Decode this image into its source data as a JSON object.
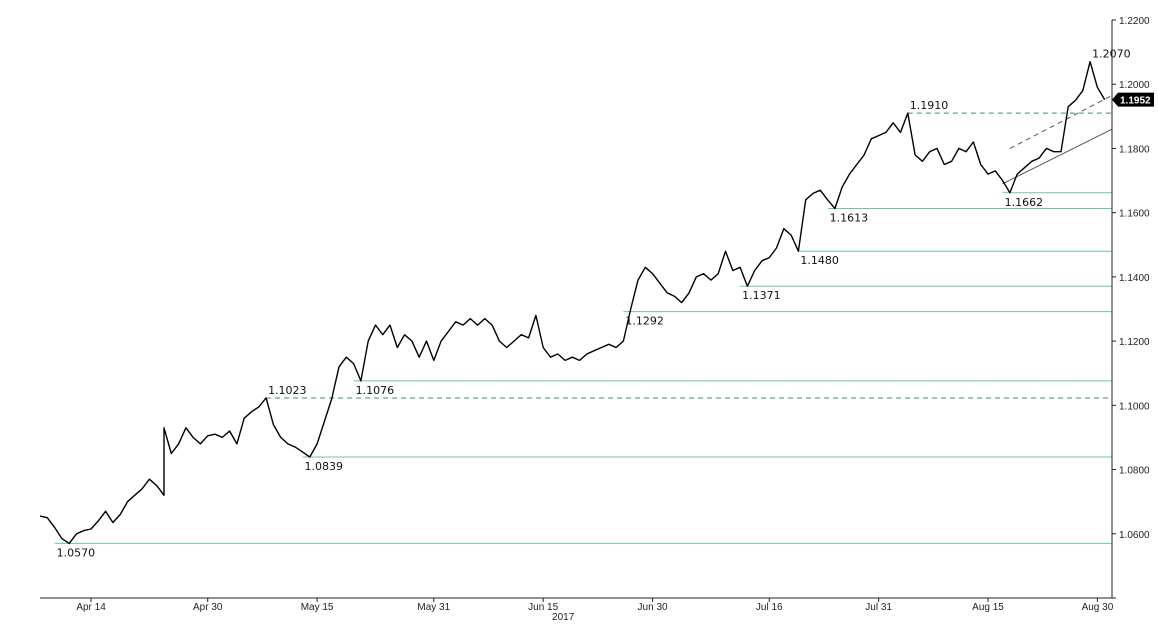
{
  "chart_data": {
    "type": "line",
    "title": "",
    "xlabel": "",
    "ylabel": "",
    "year_label": "2017",
    "ylim": [
      1.04,
      1.22
    ],
    "xlim": [
      "2017-04-07",
      "2017-09-01"
    ],
    "grid": false,
    "y_ticks": [
      "1.0600",
      "1.0800",
      "1.1000",
      "1.1200",
      "1.1400",
      "1.1600",
      "1.1800",
      "1.2000",
      "1.2200"
    ],
    "x_ticks": [
      {
        "date": "2017-04-14",
        "label": "Apr 14"
      },
      {
        "date": "2017-04-30",
        "label": "Apr 30"
      },
      {
        "date": "2017-05-15",
        "label": "May 15"
      },
      {
        "date": "2017-05-31",
        "label": "May 31"
      },
      {
        "date": "2017-06-15",
        "label": "Jun 15"
      },
      {
        "date": "2017-06-30",
        "label": "Jun 30"
      },
      {
        "date": "2017-07-16",
        "label": "Jul 16"
      },
      {
        "date": "2017-07-31",
        "label": "Jul 31"
      },
      {
        "date": "2017-08-15",
        "label": "Aug 15"
      },
      {
        "date": "2017-08-30",
        "label": "Aug 30"
      }
    ],
    "series": [
      {
        "name": "",
        "color": "#000000",
        "points": [
          [
            "2017-04-07",
            1.0655
          ],
          [
            "2017-04-08",
            1.065
          ],
          [
            "2017-04-09",
            1.062
          ],
          [
            "2017-04-10",
            1.0585
          ],
          [
            "2017-04-11",
            1.057
          ],
          [
            "2017-04-12",
            1.06
          ],
          [
            "2017-04-13",
            1.061
          ],
          [
            "2017-04-14",
            1.0615
          ],
          [
            "2017-04-15",
            1.064
          ],
          [
            "2017-04-16",
            1.067
          ],
          [
            "2017-04-17",
            1.0635
          ],
          [
            "2017-04-18",
            1.066
          ],
          [
            "2017-04-19",
            1.07
          ],
          [
            "2017-04-20",
            1.072
          ],
          [
            "2017-04-21",
            1.074
          ],
          [
            "2017-04-22",
            1.077
          ],
          [
            "2017-04-23",
            1.075
          ],
          [
            "2017-04-24",
            1.072
          ],
          [
            "2017-04-24",
            1.088
          ],
          [
            "2017-04-24",
            1.093
          ],
          [
            "2017-04-25",
            1.085
          ],
          [
            "2017-04-26",
            1.088
          ],
          [
            "2017-04-27",
            1.093
          ],
          [
            "2017-04-28",
            1.09
          ],
          [
            "2017-04-29",
            1.088
          ],
          [
            "2017-04-30",
            1.0905
          ],
          [
            "2017-05-01",
            1.091
          ],
          [
            "2017-05-02",
            1.09
          ],
          [
            "2017-05-03",
            1.092
          ],
          [
            "2017-05-04",
            1.088
          ],
          [
            "2017-05-05",
            1.096
          ],
          [
            "2017-05-06",
            1.098
          ],
          [
            "2017-05-07",
            1.0995
          ],
          [
            "2017-05-08",
            1.1023
          ],
          [
            "2017-05-09",
            1.094
          ],
          [
            "2017-05-10",
            1.09
          ],
          [
            "2017-05-11",
            1.088
          ],
          [
            "2017-05-12",
            1.087
          ],
          [
            "2017-05-13",
            1.0855
          ],
          [
            "2017-05-14",
            1.0839
          ],
          [
            "2017-05-15",
            1.088
          ],
          [
            "2017-05-16",
            1.095
          ],
          [
            "2017-05-17",
            1.102
          ],
          [
            "2017-05-18",
            1.112
          ],
          [
            "2017-05-19",
            1.115
          ],
          [
            "2017-05-20",
            1.113
          ],
          [
            "2017-05-21",
            1.1076
          ],
          [
            "2017-05-22",
            1.12
          ],
          [
            "2017-05-23",
            1.125
          ],
          [
            "2017-05-24",
            1.122
          ],
          [
            "2017-05-25",
            1.125
          ],
          [
            "2017-05-26",
            1.118
          ],
          [
            "2017-05-27",
            1.122
          ],
          [
            "2017-05-28",
            1.12
          ],
          [
            "2017-05-29",
            1.115
          ],
          [
            "2017-05-30",
            1.12
          ],
          [
            "2017-05-31",
            1.114
          ],
          [
            "2017-06-01",
            1.12
          ],
          [
            "2017-06-02",
            1.123
          ],
          [
            "2017-06-03",
            1.126
          ],
          [
            "2017-06-04",
            1.125
          ],
          [
            "2017-06-05",
            1.127
          ],
          [
            "2017-06-06",
            1.125
          ],
          [
            "2017-06-07",
            1.127
          ],
          [
            "2017-06-08",
            1.125
          ],
          [
            "2017-06-09",
            1.12
          ],
          [
            "2017-06-10",
            1.118
          ],
          [
            "2017-06-11",
            1.12
          ],
          [
            "2017-06-12",
            1.122
          ],
          [
            "2017-06-13",
            1.121
          ],
          [
            "2017-06-14",
            1.128
          ],
          [
            "2017-06-15",
            1.118
          ],
          [
            "2017-06-16",
            1.115
          ],
          [
            "2017-06-17",
            1.116
          ],
          [
            "2017-06-18",
            1.114
          ],
          [
            "2017-06-19",
            1.115
          ],
          [
            "2017-06-20",
            1.114
          ],
          [
            "2017-06-21",
            1.116
          ],
          [
            "2017-06-22",
            1.117
          ],
          [
            "2017-06-23",
            1.118
          ],
          [
            "2017-06-24",
            1.119
          ],
          [
            "2017-06-25",
            1.118
          ],
          [
            "2017-06-26",
            1.12
          ],
          [
            "2017-06-27",
            1.13
          ],
          [
            "2017-06-28",
            1.139
          ],
          [
            "2017-06-29",
            1.143
          ],
          [
            "2017-06-30",
            1.141
          ],
          [
            "2017-07-01",
            1.138
          ],
          [
            "2017-07-02",
            1.135
          ],
          [
            "2017-07-03",
            1.134
          ],
          [
            "2017-07-04",
            1.132
          ],
          [
            "2017-07-05",
            1.135
          ],
          [
            "2017-07-06",
            1.14
          ],
          [
            "2017-07-07",
            1.141
          ],
          [
            "2017-07-08",
            1.139
          ],
          [
            "2017-07-09",
            1.141
          ],
          [
            "2017-07-10",
            1.148
          ],
          [
            "2017-07-11",
            1.142
          ],
          [
            "2017-07-12",
            1.143
          ],
          [
            "2017-07-13",
            1.1371
          ],
          [
            "2017-07-14",
            1.142
          ],
          [
            "2017-07-15",
            1.145
          ],
          [
            "2017-07-16",
            1.146
          ],
          [
            "2017-07-17",
            1.149
          ],
          [
            "2017-07-18",
            1.155
          ],
          [
            "2017-07-19",
            1.153
          ],
          [
            "2017-07-20",
            1.148
          ],
          [
            "2017-07-21",
            1.164
          ],
          [
            "2017-07-22",
            1.166
          ],
          [
            "2017-07-23",
            1.167
          ],
          [
            "2017-07-24",
            1.164
          ],
          [
            "2017-07-25",
            1.1613
          ],
          [
            "2017-07-26",
            1.168
          ],
          [
            "2017-07-27",
            1.172
          ],
          [
            "2017-07-28",
            1.175
          ],
          [
            "2017-07-29",
            1.178
          ],
          [
            "2017-07-30",
            1.183
          ],
          [
            "2017-07-31",
            1.184
          ],
          [
            "2017-08-01",
            1.185
          ],
          [
            "2017-08-02",
            1.188
          ],
          [
            "2017-08-03",
            1.185
          ],
          [
            "2017-08-04",
            1.191
          ],
          [
            "2017-08-05",
            1.178
          ],
          [
            "2017-08-06",
            1.176
          ],
          [
            "2017-08-07",
            1.179
          ],
          [
            "2017-08-08",
            1.18
          ],
          [
            "2017-08-09",
            1.175
          ],
          [
            "2017-08-10",
            1.176
          ],
          [
            "2017-08-11",
            1.18
          ],
          [
            "2017-08-12",
            1.179
          ],
          [
            "2017-08-13",
            1.182
          ],
          [
            "2017-08-14",
            1.175
          ],
          [
            "2017-08-15",
            1.172
          ],
          [
            "2017-08-16",
            1.173
          ],
          [
            "2017-08-17",
            1.17
          ],
          [
            "2017-08-18",
            1.1662
          ],
          [
            "2017-08-19",
            1.172
          ],
          [
            "2017-08-20",
            1.174
          ],
          [
            "2017-08-21",
            1.176
          ],
          [
            "2017-08-22",
            1.177
          ],
          [
            "2017-08-23",
            1.18
          ],
          [
            "2017-08-24",
            1.179
          ],
          [
            "2017-08-25",
            1.179
          ],
          [
            "2017-08-26",
            1.193
          ],
          [
            "2017-08-27",
            1.195
          ],
          [
            "2017-08-28",
            1.198
          ],
          [
            "2017-08-29",
            1.207
          ],
          [
            "2017-08-30",
            1.199
          ],
          [
            "2017-08-31",
            1.1952
          ]
        ]
      }
    ],
    "horizontal_levels": [
      {
        "value": 1.057,
        "label": "1.0570",
        "style": "solid",
        "from": "2017-04-09",
        "label_at": "2017-04-09"
      },
      {
        "value": 1.0839,
        "label": "1.0839",
        "style": "solid",
        "from": "2017-05-13",
        "label_at": "2017-05-13"
      },
      {
        "value": 1.1023,
        "label": "1.1023",
        "style": "dashed",
        "from": "2017-05-08",
        "label_at": "2017-05-08"
      },
      {
        "value": 1.1076,
        "label": "1.1076",
        "style": "solid",
        "from": "2017-05-20",
        "label_at": "2017-05-20"
      },
      {
        "value": 1.1292,
        "label": "1.1292",
        "style": "solid",
        "from": "2017-06-26",
        "label_at": "2017-06-26"
      },
      {
        "value": 1.1371,
        "label": "1.1371",
        "style": "solid",
        "from": "2017-07-12",
        "label_at": "2017-07-12"
      },
      {
        "value": 1.148,
        "label": "1.1480",
        "style": "solid",
        "from": "2017-07-20",
        "label_at": "2017-07-20"
      },
      {
        "value": 1.1613,
        "label": "1.1613",
        "style": "solid",
        "from": "2017-07-24",
        "label_at": "2017-07-24"
      },
      {
        "value": 1.1662,
        "label": "1.1662",
        "style": "solid",
        "from": "2017-08-17",
        "label_at": "2017-08-17"
      },
      {
        "value": 1.191,
        "label": "1.1910",
        "style": "dashed",
        "from": "2017-08-04",
        "label_at": "2017-08-04"
      },
      {
        "value": 1.207,
        "label": "1.2070",
        "style": "none",
        "from": "2017-08-29",
        "label_at": "2017-08-29"
      }
    ],
    "trend_lines": [
      {
        "style": "solid",
        "from": [
          "2017-08-17",
          1.169
        ],
        "to": [
          "2017-09-01",
          1.186
        ]
      },
      {
        "style": "dashed",
        "from": [
          "2017-08-18",
          1.18
        ],
        "to": [
          "2017-09-01",
          1.1965
        ]
      }
    ],
    "last_price": {
      "value": 1.1952,
      "label": "1.1952"
    },
    "colors": {
      "price_line": "#000000",
      "support_line": "#6fc5a0",
      "dashed_line": "#3a8f6d",
      "trend_line": "#555555",
      "axis": "#222222",
      "last_price_bg": "#000000"
    }
  }
}
